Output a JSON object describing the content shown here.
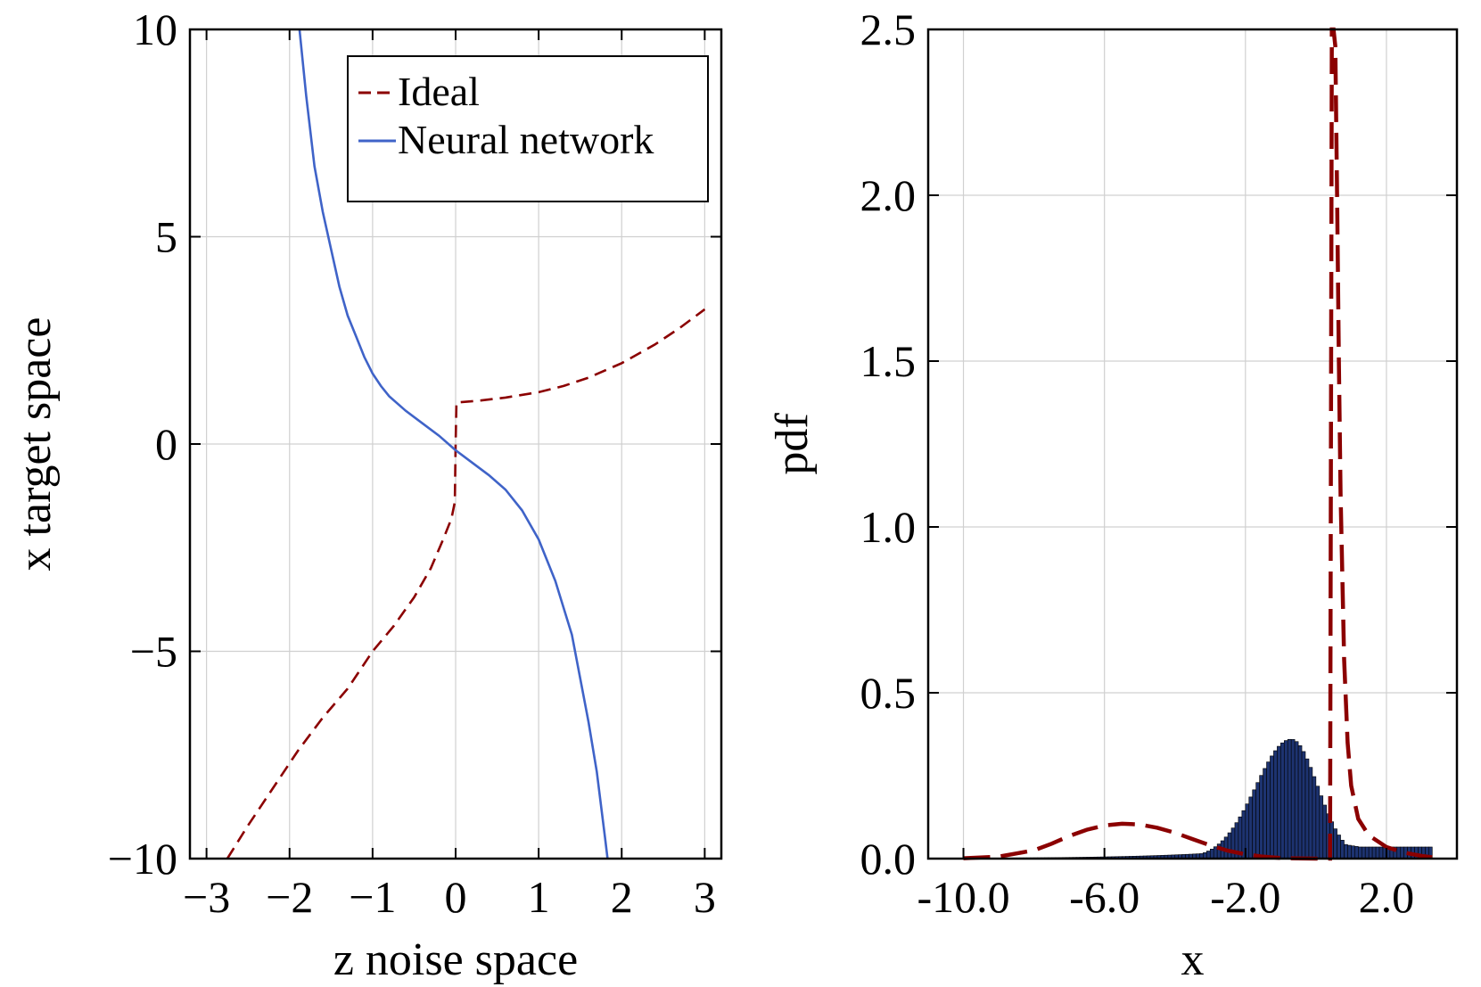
{
  "chart_data": [
    {
      "type": "line",
      "title": "",
      "xlabel": "z noise space",
      "ylabel": "x target space",
      "xlim": [
        -3.2,
        3.2
      ],
      "ylim": [
        -10,
        10
      ],
      "xticks": [
        -3,
        -2,
        -1,
        0,
        1,
        2,
        3
      ],
      "xtick_labels": [
        "−3",
        "−2",
        "−1",
        "0",
        "1",
        "2",
        "3"
      ],
      "yticks": [
        -10,
        -5,
        0,
        5,
        10
      ],
      "ytick_labels": [
        "−10",
        "−5",
        "0",
        "5",
        "10"
      ],
      "grid": true,
      "legend": "top-right",
      "series": [
        {
          "name": "Ideal",
          "style": "dashed",
          "color": "#8b0000",
          "x": [
            -2.75,
            -2.5,
            -2.2,
            -1.9,
            -1.6,
            -1.3,
            -1.0,
            -0.75,
            -0.5,
            -0.3,
            -0.15,
            -0.05,
            -0.01,
            0.0,
            0.01,
            0.3,
            0.6,
            1.0,
            1.3,
            1.6,
            2.0,
            2.4,
            2.7,
            3.0
          ],
          "y": [
            -10.0,
            -9.2,
            -8.3,
            -7.4,
            -6.6,
            -5.9,
            -5.0,
            -4.4,
            -3.7,
            -3.0,
            -2.3,
            -1.8,
            -1.4,
            0.0,
            1.0,
            1.05,
            1.12,
            1.25,
            1.4,
            1.6,
            1.95,
            2.4,
            2.8,
            3.25
          ]
        },
        {
          "name": "Neural network",
          "style": "solid",
          "color": "#3f63c8",
          "x": [
            -1.88,
            -1.8,
            -1.7,
            -1.6,
            -1.5,
            -1.4,
            -1.3,
            -1.2,
            -1.1,
            -1.0,
            -0.9,
            -0.8,
            -0.6,
            -0.4,
            -0.2,
            0.0,
            0.2,
            0.4,
            0.6,
            0.8,
            1.0,
            1.2,
            1.4,
            1.6,
            1.7,
            1.8,
            1.83
          ],
          "y": [
            10.0,
            8.4,
            6.7,
            5.6,
            4.7,
            3.8,
            3.1,
            2.6,
            2.1,
            1.7,
            1.4,
            1.15,
            0.8,
            0.5,
            0.2,
            -0.15,
            -0.45,
            -0.75,
            -1.1,
            -1.6,
            -2.3,
            -3.3,
            -4.6,
            -6.7,
            -7.9,
            -9.5,
            -10.0
          ]
        }
      ]
    },
    {
      "type": "bar",
      "title": "",
      "xlabel": "x",
      "ylabel": "pdf",
      "xlim": [
        -11.0,
        4.0
      ],
      "ylim": [
        0.0,
        2.5
      ],
      "xticks": [
        -10.0,
        -6.0,
        -2.0,
        2.0
      ],
      "xtick_labels": [
        "-10.0",
        "-6.0",
        "-2.0",
        "2.0"
      ],
      "yticks": [
        0.0,
        0.5,
        1.0,
        1.5,
        2.0,
        2.5
      ],
      "ytick_labels": [
        "0.0",
        "0.5",
        "1.0",
        "1.5",
        "2.0",
        "2.5"
      ],
      "grid": true,
      "histogram": {
        "color": "#1d3370",
        "edge_color": "#000000",
        "bin_width": 0.1,
        "bin_start": -10.0,
        "peak": {
          "x": -0.7,
          "y": 0.36
        },
        "left_tail_end": {
          "x": -10.0,
          "y": 0.0
        },
        "right_end": {
          "x": 3.3,
          "y": 0.035
        }
      },
      "series": [
        {
          "name": "",
          "style": "dashed",
          "color": "#8b0000",
          "x": [
            -10.0,
            -9.0,
            -8.0,
            -7.5,
            -7.0,
            -6.5,
            -6.0,
            -5.5,
            -5.0,
            -4.5,
            -4.0,
            -3.5,
            -3.0,
            -2.5,
            -2.0,
            -1.5,
            -1.0,
            -0.5,
            0.0,
            0.4,
            0.45,
            0.5,
            0.55,
            0.6,
            0.65,
            0.7,
            0.8,
            0.9,
            1.0,
            1.2,
            1.5,
            2.0,
            2.5,
            3.0,
            3.3
          ],
          "y": [
            0.001,
            0.006,
            0.025,
            0.045,
            0.068,
            0.087,
            0.1,
            0.105,
            0.103,
            0.093,
            0.078,
            0.059,
            0.04,
            0.024,
            0.013,
            0.006,
            0.002,
            0.0005,
            0.0,
            0.0,
            2.5,
            2.5,
            2.45,
            2.0,
            1.5,
            1.1,
            0.6,
            0.35,
            0.22,
            0.12,
            0.07,
            0.035,
            0.018,
            0.008,
            0.004
          ]
        }
      ]
    }
  ]
}
